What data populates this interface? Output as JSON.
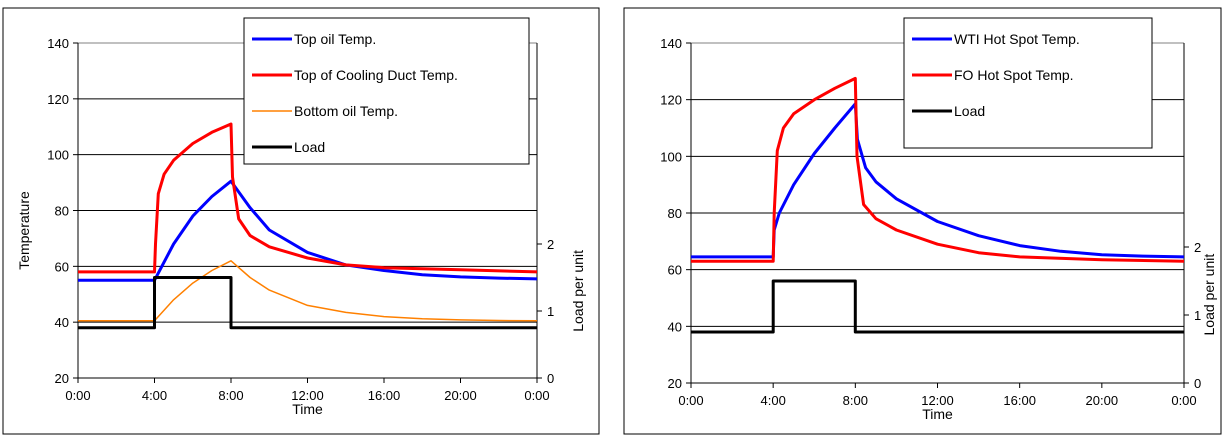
{
  "chart_data": [
    {
      "type": "line",
      "xlabel": "Time",
      "ylabel": "Temperature",
      "y2label": "Load per unit",
      "xticks": [
        "0:00",
        "4:00",
        "8:00",
        "12:00",
        "16:00",
        "20:00",
        "0:00"
      ],
      "yticks": [
        "20",
        "40",
        "60",
        "80",
        "100",
        "120",
        "140"
      ],
      "y2ticks": [
        "0",
        "1",
        "2"
      ],
      "xlim": [
        0,
        24
      ],
      "ylim": [
        20,
        140
      ],
      "y2lim": [
        0,
        5
      ],
      "grid": "horizontal",
      "legend_placement": "top-right",
      "series": [
        {
          "name": "Top oil Temp.",
          "color": "#0000ff",
          "axis": "left",
          "x": [
            0,
            4,
            5,
            6,
            7,
            8,
            9,
            10,
            12,
            14,
            16,
            18,
            20,
            22,
            24
          ],
          "y": [
            55,
            55,
            68,
            78,
            85,
            90.5,
            81,
            73,
            65,
            60.5,
            58.5,
            57,
            56.2,
            55.8,
            55.5
          ]
        },
        {
          "name": "Top of Cooling Duct Temp.",
          "color": "#ff0000",
          "axis": "left",
          "x": [
            0,
            4,
            4.05,
            4.2,
            4.5,
            5,
            6,
            7,
            8,
            8.08,
            8.4,
            9,
            10,
            12,
            14,
            16,
            20,
            24
          ],
          "y": [
            58,
            58,
            68,
            86,
            93,
            98,
            104,
            108,
            111,
            92,
            77,
            71,
            67,
            63,
            60.5,
            59.5,
            58.8,
            58
          ]
        },
        {
          "name": "Bottom oil Temp.",
          "color": "#ff8000",
          "axis": "left",
          "x": [
            0,
            4,
            5,
            6,
            7,
            8,
            9,
            10,
            12,
            14,
            16,
            18,
            20,
            22,
            24
          ],
          "y": [
            40.5,
            40.5,
            48,
            54,
            58.5,
            62,
            56,
            51.5,
            46,
            43.5,
            42,
            41.2,
            40.8,
            40.6,
            40.5
          ]
        },
        {
          "name": "Load",
          "color": "#000000",
          "axis": "right",
          "x": [
            0,
            4,
            4,
            8,
            8,
            24
          ],
          "y": [
            0.75,
            0.75,
            1.5,
            1.5,
            0.75,
            0.75
          ]
        }
      ]
    },
    {
      "type": "line",
      "xlabel": "Time",
      "ylabel": "",
      "y2label": "Load per unit",
      "xticks": [
        "0:00",
        "4:00",
        "8:00",
        "12:00",
        "16:00",
        "20:00",
        "0:00"
      ],
      "yticks": [
        "20",
        "40",
        "60",
        "80",
        "100",
        "120",
        "140"
      ],
      "y2ticks": [
        "0",
        "1",
        "2"
      ],
      "xlim": [
        0,
        24
      ],
      "ylim": [
        20,
        140
      ],
      "y2lim": [
        0,
        5
      ],
      "grid": "horizontal",
      "legend_placement": "top-right",
      "series": [
        {
          "name": "WTI Hot Spot Temp.",
          "color": "#0000ff",
          "axis": "left",
          "x": [
            0,
            4,
            4.05,
            4.3,
            5,
            6,
            7,
            8,
            8.1,
            8.5,
            9,
            10,
            12,
            14,
            16,
            18,
            20,
            22,
            24
          ],
          "y": [
            64.5,
            64.5,
            74,
            80,
            90,
            101,
            110,
            118.5,
            106,
            96,
            91,
            85,
            77,
            72,
            68.5,
            66.5,
            65.3,
            64.8,
            64.5
          ]
        },
        {
          "name": "FO Hot Spot Temp.",
          "color": "#ff0000",
          "axis": "left",
          "x": [
            0,
            4,
            4.05,
            4.2,
            4.5,
            5,
            6,
            7,
            8,
            8.08,
            8.4,
            9,
            10,
            12,
            14,
            16,
            20,
            24
          ],
          "y": [
            63,
            63,
            80,
            102,
            110,
            115,
            120,
            124,
            127.5,
            100,
            83,
            78,
            74,
            69,
            66,
            64.5,
            63.5,
            63
          ]
        },
        {
          "name": "Load",
          "color": "#000000",
          "axis": "right",
          "x": [
            0,
            4,
            4,
            8,
            8,
            24
          ],
          "y": [
            0.75,
            0.75,
            1.5,
            1.5,
            0.75,
            0.75
          ]
        }
      ]
    }
  ]
}
